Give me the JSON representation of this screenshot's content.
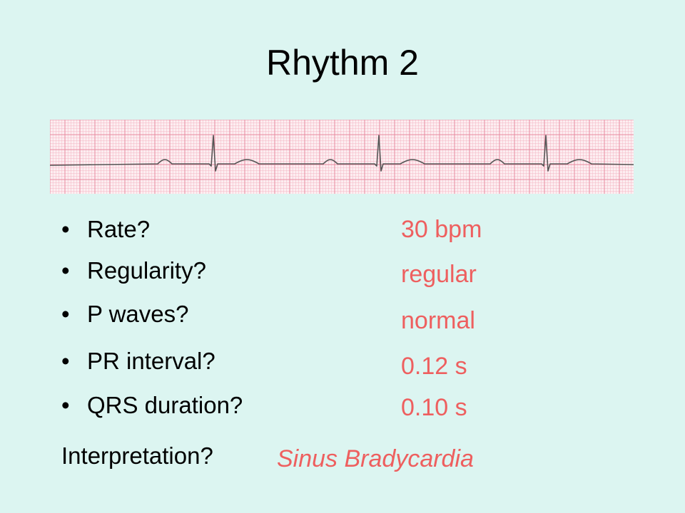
{
  "slide": {
    "title": "Rhythm 2"
  },
  "questions": [
    {
      "label": "Rate?",
      "answer": "30 bpm"
    },
    {
      "label": "Regularity?",
      "answer": "regular"
    },
    {
      "label": "P waves?",
      "answer": "normal"
    },
    {
      "label": "PR interval?",
      "answer": "0.12 s"
    },
    {
      "label": "QRS duration?",
      "answer": "0.10 s"
    }
  ],
  "bullet_symbol": "•",
  "interpretation": {
    "label": "Interpretation?",
    "answer": "Sinus Bradycardia"
  },
  "colors": {
    "background": "#dcf5f1",
    "answer_text": "#ee5f5f",
    "ecg_grid_minor": "#f4b6c4",
    "ecg_grid_major": "#e88aa0",
    "ecg_paper": "#fdeef1",
    "ecg_trace": "#555555"
  }
}
